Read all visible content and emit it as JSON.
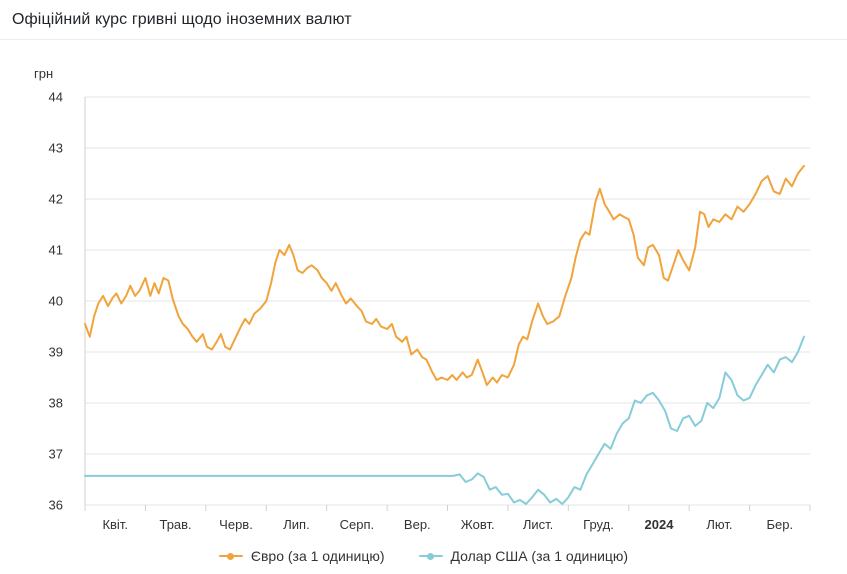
{
  "header": {
    "title": "Офіційний курс гривні щодо іноземних валют"
  },
  "chart_data": {
    "type": "line",
    "title": "Офіційний курс гривні щодо іноземних валют",
    "unit_label": "грн",
    "xlabel": "",
    "ylabel": "грн",
    "ylim": [
      36,
      44
    ],
    "y_ticks": [
      36,
      37,
      38,
      39,
      40,
      41,
      42,
      43,
      44
    ],
    "x_range": [
      0,
      12
    ],
    "x_labels": [
      "Квіт.",
      "Трав.",
      "Черв.",
      "Лип.",
      "Серп.",
      "Вер.",
      "Жовт.",
      "Лист.",
      "Груд.",
      "2024",
      "Лют.",
      "Бер."
    ],
    "emphasized_x_label": "2024",
    "grid": true,
    "legend_position": "bottom",
    "axis_color": "#d0d0d0",
    "grid_color": "#e6e6e6",
    "label_color": "#333333",
    "series": [
      {
        "name": "Євро (за 1 одиницю)",
        "color": "#f1a33c",
        "points": [
          [
            0,
            39.55
          ],
          [
            0.08,
            39.3
          ],
          [
            0.15,
            39.7
          ],
          [
            0.22,
            39.95
          ],
          [
            0.3,
            40.1
          ],
          [
            0.38,
            39.9
          ],
          [
            0.45,
            40.05
          ],
          [
            0.52,
            40.15
          ],
          [
            0.6,
            39.95
          ],
          [
            0.68,
            40.1
          ],
          [
            0.75,
            40.3
          ],
          [
            0.83,
            40.1
          ],
          [
            0.9,
            40.2
          ],
          [
            1.0,
            40.45
          ],
          [
            1.08,
            40.1
          ],
          [
            1.15,
            40.35
          ],
          [
            1.22,
            40.15
          ],
          [
            1.3,
            40.45
          ],
          [
            1.38,
            40.4
          ],
          [
            1.45,
            40.05
          ],
          [
            1.55,
            39.7
          ],
          [
            1.62,
            39.55
          ],
          [
            1.7,
            39.45
          ],
          [
            1.78,
            39.3
          ],
          [
            1.85,
            39.2
          ],
          [
            1.95,
            39.35
          ],
          [
            2.02,
            39.1
          ],
          [
            2.1,
            39.05
          ],
          [
            2.18,
            39.2
          ],
          [
            2.25,
            39.35
          ],
          [
            2.32,
            39.1
          ],
          [
            2.4,
            39.05
          ],
          [
            2.5,
            39.3
          ],
          [
            2.58,
            39.5
          ],
          [
            2.65,
            39.65
          ],
          [
            2.72,
            39.55
          ],
          [
            2.8,
            39.75
          ],
          [
            2.9,
            39.85
          ],
          [
            3.0,
            40.0
          ],
          [
            3.08,
            40.35
          ],
          [
            3.15,
            40.75
          ],
          [
            3.22,
            41.0
          ],
          [
            3.3,
            40.9
          ],
          [
            3.38,
            41.1
          ],
          [
            3.45,
            40.9
          ],
          [
            3.52,
            40.6
          ],
          [
            3.6,
            40.55
          ],
          [
            3.68,
            40.65
          ],
          [
            3.75,
            40.7
          ],
          [
            3.85,
            40.6
          ],
          [
            3.92,
            40.45
          ],
          [
            4.0,
            40.35
          ],
          [
            4.08,
            40.2
          ],
          [
            4.15,
            40.35
          ],
          [
            4.25,
            40.1
          ],
          [
            4.32,
            39.95
          ],
          [
            4.4,
            40.05
          ],
          [
            4.5,
            39.9
          ],
          [
            4.58,
            39.8
          ],
          [
            4.65,
            39.6
          ],
          [
            4.75,
            39.55
          ],
          [
            4.82,
            39.65
          ],
          [
            4.9,
            39.5
          ],
          [
            5.0,
            39.45
          ],
          [
            5.08,
            39.55
          ],
          [
            5.15,
            39.3
          ],
          [
            5.25,
            39.2
          ],
          [
            5.32,
            39.3
          ],
          [
            5.4,
            38.95
          ],
          [
            5.5,
            39.05
          ],
          [
            5.58,
            38.9
          ],
          [
            5.65,
            38.85
          ],
          [
            5.75,
            38.6
          ],
          [
            5.82,
            38.45
          ],
          [
            5.9,
            38.5
          ],
          [
            6.0,
            38.45
          ],
          [
            6.08,
            38.55
          ],
          [
            6.15,
            38.45
          ],
          [
            6.25,
            38.6
          ],
          [
            6.32,
            38.5
          ],
          [
            6.4,
            38.55
          ],
          [
            6.5,
            38.85
          ],
          [
            6.58,
            38.6
          ],
          [
            6.65,
            38.35
          ],
          [
            6.75,
            38.5
          ],
          [
            6.82,
            38.4
          ],
          [
            6.9,
            38.55
          ],
          [
            7.0,
            38.5
          ],
          [
            7.1,
            38.75
          ],
          [
            7.18,
            39.15
          ],
          [
            7.25,
            39.3
          ],
          [
            7.32,
            39.25
          ],
          [
            7.4,
            39.6
          ],
          [
            7.5,
            39.95
          ],
          [
            7.58,
            39.7
          ],
          [
            7.65,
            39.55
          ],
          [
            7.75,
            39.6
          ],
          [
            7.85,
            39.7
          ],
          [
            7.95,
            40.1
          ],
          [
            8.05,
            40.45
          ],
          [
            8.12,
            40.85
          ],
          [
            8.2,
            41.2
          ],
          [
            8.28,
            41.35
          ],
          [
            8.35,
            41.3
          ],
          [
            8.45,
            41.95
          ],
          [
            8.52,
            42.2
          ],
          [
            8.6,
            41.9
          ],
          [
            8.68,
            41.75
          ],
          [
            8.75,
            41.6
          ],
          [
            8.85,
            41.7
          ],
          [
            8.92,
            41.65
          ],
          [
            9.0,
            41.6
          ],
          [
            9.08,
            41.3
          ],
          [
            9.15,
            40.85
          ],
          [
            9.25,
            40.7
          ],
          [
            9.32,
            41.05
          ],
          [
            9.4,
            41.1
          ],
          [
            9.5,
            40.9
          ],
          [
            9.58,
            40.45
          ],
          [
            9.65,
            40.4
          ],
          [
            9.75,
            40.75
          ],
          [
            9.82,
            41.0
          ],
          [
            9.9,
            40.8
          ],
          [
            10.0,
            40.6
          ],
          [
            10.1,
            41.05
          ],
          [
            10.18,
            41.75
          ],
          [
            10.25,
            41.7
          ],
          [
            10.32,
            41.45
          ],
          [
            10.4,
            41.6
          ],
          [
            10.5,
            41.55
          ],
          [
            10.6,
            41.7
          ],
          [
            10.7,
            41.6
          ],
          [
            10.8,
            41.85
          ],
          [
            10.9,
            41.75
          ],
          [
            11.0,
            41.9
          ],
          [
            11.1,
            42.1
          ],
          [
            11.2,
            42.35
          ],
          [
            11.3,
            42.45
          ],
          [
            11.4,
            42.15
          ],
          [
            11.5,
            42.1
          ],
          [
            11.6,
            42.4
          ],
          [
            11.7,
            42.25
          ],
          [
            11.8,
            42.5
          ],
          [
            11.9,
            42.65
          ]
        ]
      },
      {
        "name": "Долар США (за 1 одиницю)",
        "color": "#87ccd9",
        "points": [
          [
            0,
            36.57
          ],
          [
            6.1,
            36.57
          ],
          [
            6.2,
            36.6
          ],
          [
            6.3,
            36.45
          ],
          [
            6.4,
            36.5
          ],
          [
            6.5,
            36.62
          ],
          [
            6.6,
            36.55
          ],
          [
            6.7,
            36.3
          ],
          [
            6.8,
            36.35
          ],
          [
            6.9,
            36.2
          ],
          [
            7.0,
            36.22
          ],
          [
            7.1,
            36.05
          ],
          [
            7.2,
            36.1
          ],
          [
            7.3,
            36.02
          ],
          [
            7.4,
            36.15
          ],
          [
            7.5,
            36.3
          ],
          [
            7.6,
            36.2
          ],
          [
            7.7,
            36.05
          ],
          [
            7.8,
            36.12
          ],
          [
            7.9,
            36.02
          ],
          [
            8.0,
            36.15
          ],
          [
            8.1,
            36.35
          ],
          [
            8.2,
            36.3
          ],
          [
            8.3,
            36.6
          ],
          [
            8.4,
            36.8
          ],
          [
            8.5,
            37.0
          ],
          [
            8.6,
            37.2
          ],
          [
            8.7,
            37.1
          ],
          [
            8.8,
            37.4
          ],
          [
            8.9,
            37.6
          ],
          [
            9.0,
            37.7
          ],
          [
            9.1,
            38.05
          ],
          [
            9.2,
            38.0
          ],
          [
            9.3,
            38.15
          ],
          [
            9.4,
            38.2
          ],
          [
            9.5,
            38.05
          ],
          [
            9.6,
            37.85
          ],
          [
            9.7,
            37.5
          ],
          [
            9.8,
            37.45
          ],
          [
            9.9,
            37.7
          ],
          [
            10.0,
            37.75
          ],
          [
            10.1,
            37.55
          ],
          [
            10.2,
            37.65
          ],
          [
            10.3,
            38.0
          ],
          [
            10.4,
            37.9
          ],
          [
            10.5,
            38.1
          ],
          [
            10.6,
            38.6
          ],
          [
            10.7,
            38.45
          ],
          [
            10.8,
            38.15
          ],
          [
            10.9,
            38.05
          ],
          [
            11.0,
            38.1
          ],
          [
            11.1,
            38.35
          ],
          [
            11.2,
            38.55
          ],
          [
            11.3,
            38.75
          ],
          [
            11.4,
            38.6
          ],
          [
            11.5,
            38.85
          ],
          [
            11.6,
            38.9
          ],
          [
            11.7,
            38.8
          ],
          [
            11.8,
            39.0
          ],
          [
            11.9,
            39.3
          ]
        ]
      }
    ]
  }
}
